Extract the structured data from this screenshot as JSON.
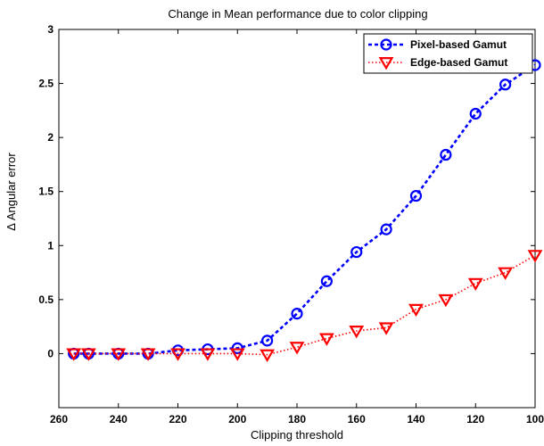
{
  "chart_data": {
    "type": "line",
    "title": "Change in Mean performance due to color clipping",
    "xlabel": "Clipping threshold",
    "ylabel": "Δ Angular error",
    "xlim": [
      260,
      100
    ],
    "ylim": [
      -0.5,
      3
    ],
    "x_reversed": true,
    "xticks": [
      260,
      240,
      220,
      200,
      180,
      160,
      140,
      120,
      100
    ],
    "yticks": [
      0,
      0.5,
      1,
      1.5,
      2,
      2.5,
      3
    ],
    "ytick_labels": [
      "0",
      "0.5",
      "1",
      "1.5",
      "2",
      "2.5",
      "3"
    ],
    "grid": false,
    "legend_position": "top-right",
    "series": [
      {
        "name": "Pixel-based Gamut",
        "color": "#0000ff",
        "marker": "circle",
        "line_style": "dashed",
        "x": [
          255,
          250,
          240,
          230,
          220,
          210,
          200,
          190,
          180,
          170,
          160,
          150,
          140,
          130,
          120,
          110,
          100
        ],
        "y": [
          0.0,
          0.0,
          0.0,
          0.0,
          0.03,
          0.04,
          0.05,
          0.12,
          0.37,
          0.67,
          0.94,
          1.15,
          1.46,
          1.84,
          2.22,
          2.49,
          2.67
        ]
      },
      {
        "name": "Edge-based Gamut",
        "color": "#ff0000",
        "marker": "triangle-down",
        "line_style": "dotted",
        "x": [
          255,
          250,
          240,
          230,
          220,
          210,
          200,
          190,
          180,
          170,
          160,
          150,
          140,
          130,
          120,
          110,
          100
        ],
        "y": [
          0.0,
          0.0,
          0.0,
          0.0,
          0.0,
          0.0,
          0.0,
          -0.01,
          0.06,
          0.14,
          0.21,
          0.24,
          0.41,
          0.5,
          0.65,
          0.75,
          0.91
        ]
      }
    ]
  }
}
